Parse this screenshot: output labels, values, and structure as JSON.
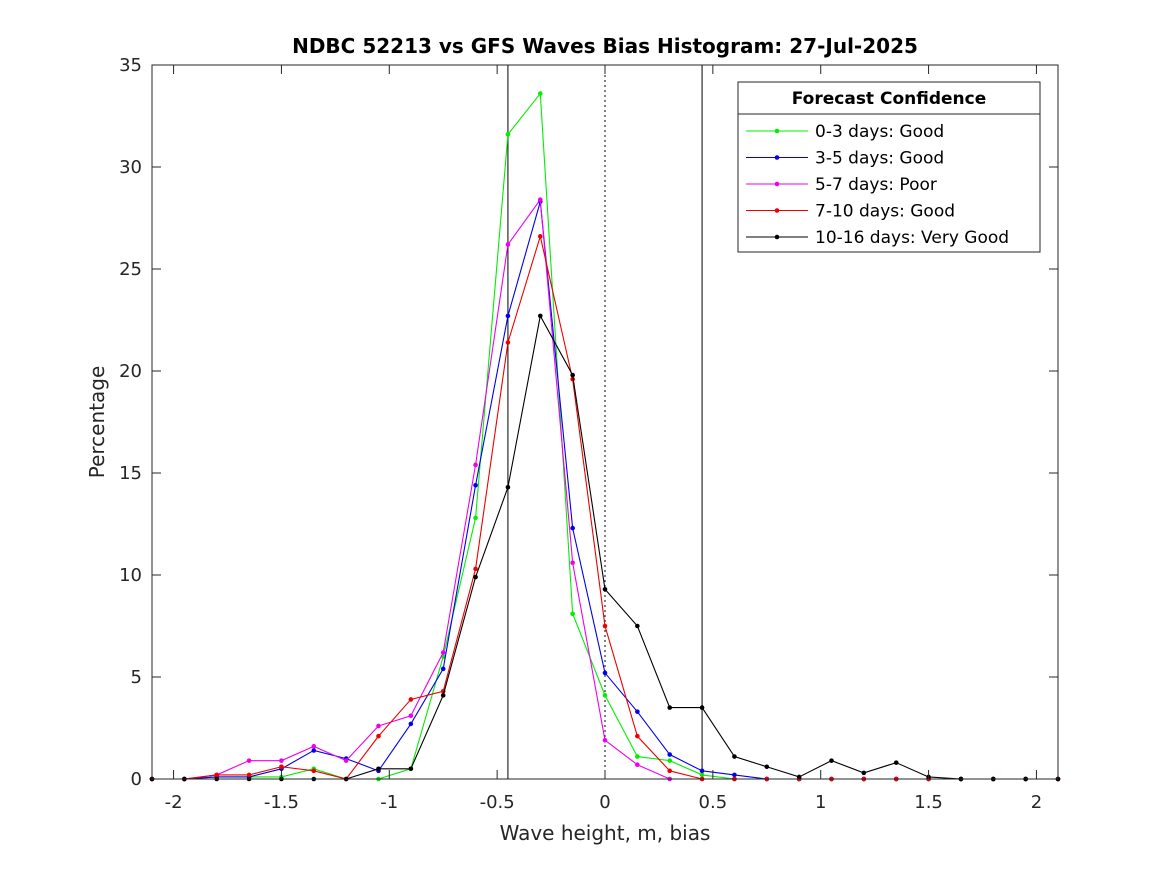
{
  "chart_data": {
    "type": "line",
    "title": "NDBC 52213 vs GFS Waves Bias Histogram: 27-Jul-2025",
    "xlabel": "Wave height, m, bias",
    "ylabel": "Percentage",
    "xlim": [
      -2.1,
      2.1
    ],
    "ylim": [
      0,
      35
    ],
    "xticks": [
      -2,
      -1.5,
      -1,
      -0.5,
      0,
      0.5,
      1,
      1.5,
      2
    ],
    "xtick_labels": [
      "-2",
      "-1.5",
      "-1",
      "-0.5",
      "0",
      "0.5",
      "1",
      "1.5",
      "2"
    ],
    "yticks": [
      0,
      5,
      10,
      15,
      20,
      25,
      30,
      35
    ],
    "ytick_labels": [
      "0",
      "5",
      "10",
      "15",
      "20",
      "25",
      "30",
      "35"
    ],
    "grid": false,
    "legend_placement": "top-right",
    "legend_title": "Forecast Confidence",
    "reference_lines": [
      {
        "x": -0.45,
        "style": "solid"
      },
      {
        "x": 0,
        "style": "dotted"
      },
      {
        "x": 0.45,
        "style": "solid"
      }
    ],
    "x": [
      -2.1,
      -1.95,
      -1.8,
      -1.65,
      -1.5,
      -1.35,
      -1.2,
      -1.05,
      -0.9,
      -0.75,
      -0.6,
      -0.45,
      -0.3,
      -0.15,
      0,
      0.15,
      0.3,
      0.45,
      0.6,
      0.75,
      0.9,
      1.05,
      1.2,
      1.35,
      1.5,
      1.65,
      1.8,
      1.95,
      2.1
    ],
    "series": [
      {
        "name": "0-3 days: Good",
        "color": "#00ee00",
        "values": [
          0,
          0,
          0.1,
          0.1,
          0.1,
          0.5,
          0,
          0,
          0.5,
          6.0,
          12.8,
          31.6,
          33.6,
          8.1,
          4.1,
          1.1,
          0.9,
          0.2,
          0,
          0,
          0,
          0,
          0,
          0,
          0,
          0,
          0,
          0,
          0
        ]
      },
      {
        "name": "3-5 days: Good",
        "color": "#0000ee",
        "values": [
          0,
          0,
          0.1,
          0.1,
          0.5,
          1.4,
          1.0,
          0.4,
          2.7,
          5.4,
          14.4,
          22.7,
          28.3,
          12.3,
          5.2,
          3.3,
          1.2,
          0.4,
          0.2,
          0,
          0,
          0,
          0,
          0,
          0,
          0,
          0,
          0,
          0
        ]
      },
      {
        "name": "5-7 days: Poor",
        "color": "#ee00ee",
        "values": [
          0,
          0,
          0.2,
          0.9,
          0.9,
          1.6,
          0.9,
          2.6,
          3.1,
          6.2,
          15.4,
          26.2,
          28.4,
          10.6,
          1.9,
          0.7,
          0,
          0,
          0,
          0,
          0,
          0,
          0,
          0,
          0,
          0,
          0,
          0,
          0
        ]
      },
      {
        "name": "7-10 days: Good",
        "color": "#ee0000",
        "values": [
          0,
          0,
          0.2,
          0.2,
          0.6,
          0.4,
          0,
          2.1,
          3.9,
          4.3,
          10.3,
          21.4,
          26.6,
          19.6,
          7.5,
          2.1,
          0.4,
          0,
          0,
          0,
          0,
          0,
          0,
          0,
          0,
          0,
          0,
          0,
          0
        ]
      },
      {
        "name": "10-16 days: Very Good",
        "color": "#000000",
        "values": [
          0,
          0,
          0,
          0,
          0,
          0,
          0,
          0.5,
          0.5,
          4.1,
          9.9,
          14.3,
          22.7,
          19.8,
          9.3,
          7.5,
          3.5,
          3.5,
          1.1,
          0.6,
          0.1,
          0.9,
          0.3,
          0.8,
          0.1,
          0,
          0,
          0,
          0
        ]
      }
    ]
  }
}
